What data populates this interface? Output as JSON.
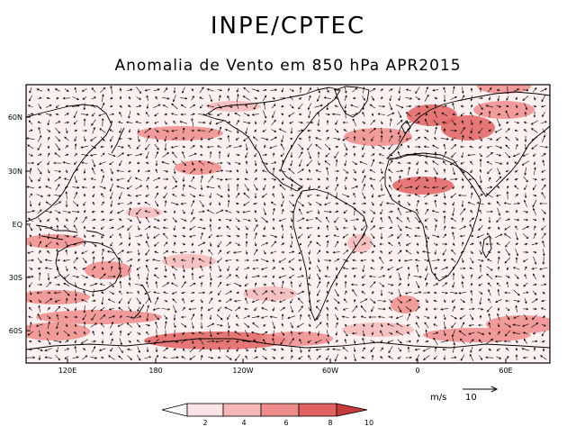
{
  "header": {
    "title": "INPE/CPTEC",
    "subtitle": "Anomalia de Vento em 850 hPa APR2015"
  },
  "map": {
    "lat_labels": [
      "60N",
      "30N",
      "EQ",
      "30S",
      "60S"
    ],
    "lon_labels": [
      "120E",
      "180",
      "120W",
      "60W",
      "0",
      "60E"
    ],
    "land_color": "#000000",
    "vector_color": "#000000"
  },
  "colorbar": {
    "labels": [
      "2",
      "4",
      "6",
      "8",
      "10"
    ],
    "colors": [
      "#ffffff",
      "#fbe3e3",
      "#f5b8b8",
      "#ee8c8c",
      "#e26262",
      "#c63c3c"
    ]
  },
  "reference_vector": {
    "unit": "m/s",
    "value": "10"
  }
}
